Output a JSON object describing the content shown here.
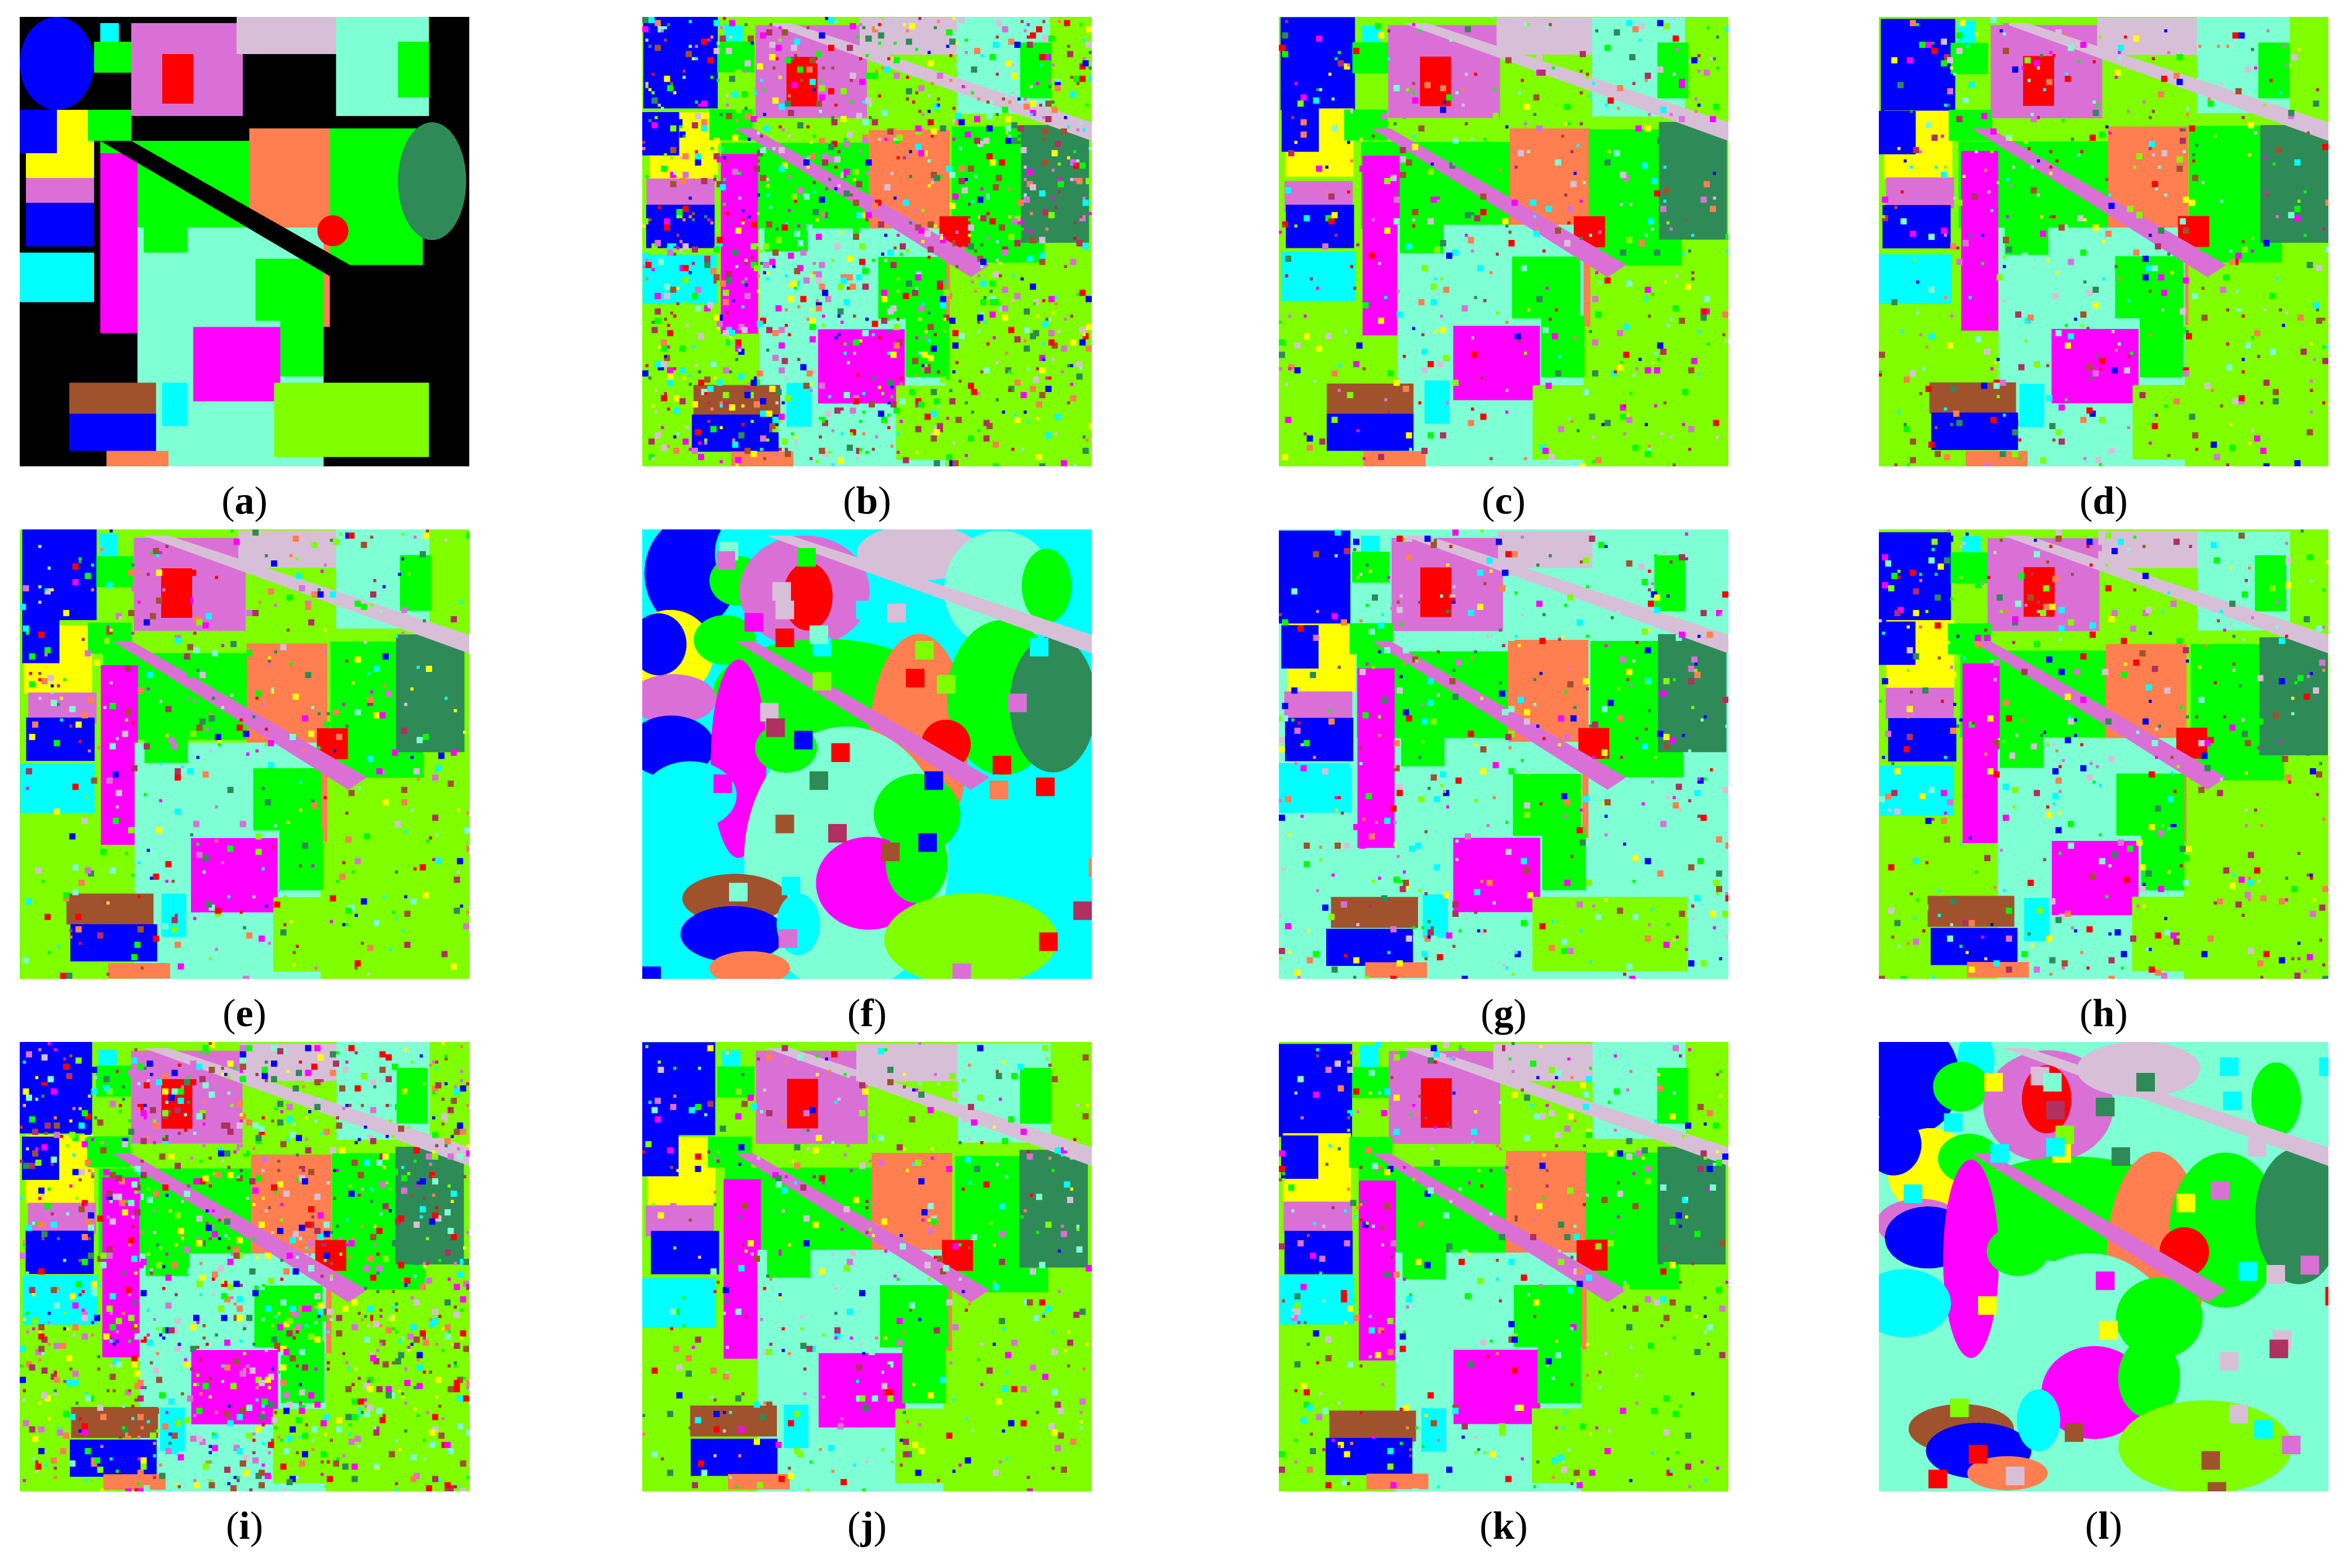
{
  "figure": {
    "panels": [
      {
        "key": "a",
        "label": "a",
        "background": "#000000",
        "kind": "ground-truth"
      },
      {
        "key": "b",
        "label": "b",
        "background": "#7fff00",
        "kind": "noisy"
      },
      {
        "key": "c",
        "label": "c",
        "background": "#7fff00",
        "kind": "medium"
      },
      {
        "key": "d",
        "label": "d",
        "background": "#7fff00",
        "kind": "medium"
      },
      {
        "key": "e",
        "label": "e",
        "background": "#7fff00",
        "kind": "medium"
      },
      {
        "key": "f",
        "label": "f",
        "background": "#00ffff",
        "kind": "smooth"
      },
      {
        "key": "g",
        "label": "g",
        "background": "#7fffd4",
        "kind": "medium"
      },
      {
        "key": "h",
        "label": "h",
        "background": "#7fff00",
        "kind": "medium"
      },
      {
        "key": "i",
        "label": "i",
        "background": "#7fff00",
        "kind": "noisy"
      },
      {
        "key": "j",
        "label": "j",
        "background": "#7fff00",
        "kind": "medium"
      },
      {
        "key": "k",
        "label": "k",
        "background": "#7fff00",
        "kind": "medium"
      },
      {
        "key": "l",
        "label": "l",
        "background": "#7fffd4",
        "kind": "smooth"
      }
    ]
  },
  "palette": {
    "dark_blue": "#0000ff",
    "cyan": "#00ffff",
    "yellow": "#ffff00",
    "green": "#00ff00",
    "lime": "#7fff00",
    "aquamarine": "#7fffd4",
    "orchid": "#da70d6",
    "thistle": "#d8bfd8",
    "magenta": "#ff00ff",
    "salmon": "#ff7f50",
    "red": "#ff0000",
    "sea_green": "#2e8b57",
    "brown": "#a0522d",
    "maroon": "#b03060"
  }
}
